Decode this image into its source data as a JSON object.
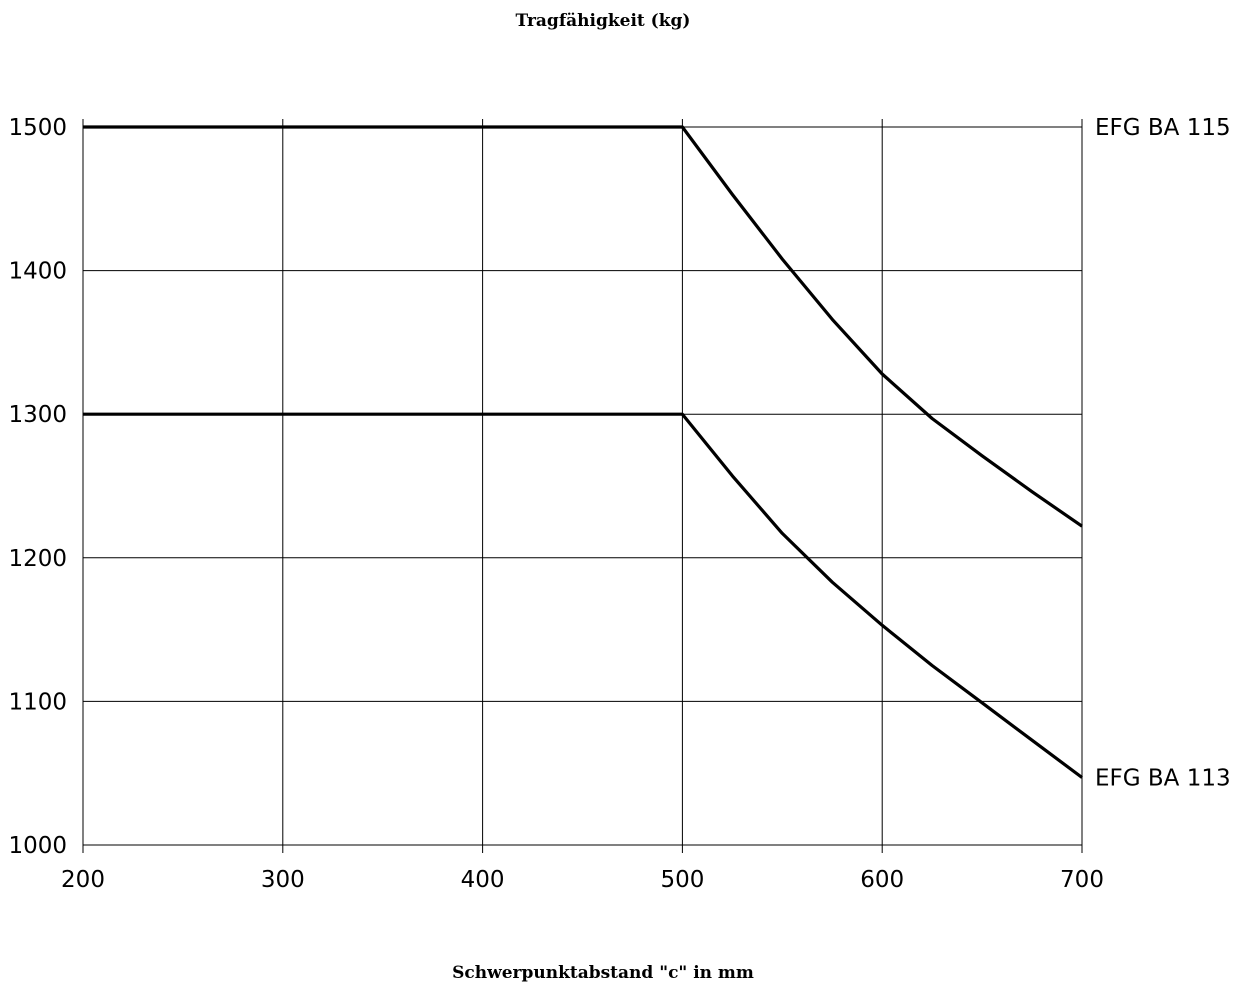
{
  "chart_data": {
    "type": "line",
    "title": "Tragfähigkeit (kg)",
    "xlabel": "Schwerpunktabstand \"c\" in mm",
    "ylabel": "",
    "xlim": [
      200,
      700
    ],
    "ylim": [
      1000,
      1500
    ],
    "xticks": [
      200,
      300,
      400,
      500,
      600,
      700
    ],
    "yticks": [
      1000,
      1100,
      1200,
      1300,
      1400,
      1500
    ],
    "grid": true,
    "legend_position": "right",
    "series": [
      {
        "name": "EFG BA 115",
        "x": [
          200,
          500,
          525,
          550,
          575,
          600,
          625,
          650,
          675,
          700
        ],
        "y": [
          1500,
          1500,
          1453,
          1408,
          1366,
          1328,
          1297,
          1271,
          1246,
          1222
        ]
      },
      {
        "name": "EFG BA 113",
        "x": [
          200,
          500,
          525,
          550,
          575,
          600,
          625,
          650,
          675,
          700
        ],
        "y": [
          1300,
          1300,
          1257,
          1217,
          1183,
          1153,
          1125,
          1099,
          1073,
          1047
        ]
      }
    ],
    "line_color": "#000000",
    "grid_color": "#000000",
    "background": "#ffffff"
  }
}
